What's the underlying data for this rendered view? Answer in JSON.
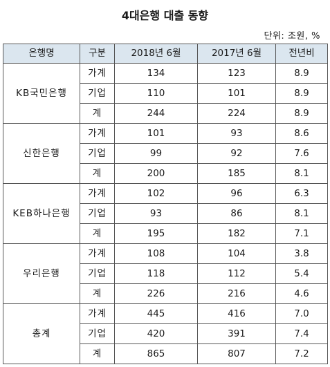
{
  "title": "4대은행 대출 동향",
  "unit": "단위: 조원, %",
  "table": {
    "headers": [
      "은행명",
      "구분",
      "2018년 6월",
      "2017년 6월",
      "전년비"
    ],
    "groups": [
      {
        "bank": "KB국민은행",
        "rows": [
          {
            "kind": "가계",
            "y2018": "134",
            "y2017": "123",
            "ratio": "8.9"
          },
          {
            "kind": "기업",
            "y2018": "110",
            "y2017": "101",
            "ratio": "8.9"
          },
          {
            "kind": "계",
            "y2018": "244",
            "y2017": "224",
            "ratio": "8.9"
          }
        ]
      },
      {
        "bank": "신한은행",
        "rows": [
          {
            "kind": "가계",
            "y2018": "101",
            "y2017": "93",
            "ratio": "8.6"
          },
          {
            "kind": "기업",
            "y2018": "99",
            "y2017": "92",
            "ratio": "7.6"
          },
          {
            "kind": "계",
            "y2018": "200",
            "y2017": "185",
            "ratio": "8.1"
          }
        ]
      },
      {
        "bank": "KEB하나은행",
        "rows": [
          {
            "kind": "가계",
            "y2018": "102",
            "y2017": "96",
            "ratio": "6.3"
          },
          {
            "kind": "기업",
            "y2018": "93",
            "y2017": "86",
            "ratio": "8.1"
          },
          {
            "kind": "계",
            "y2018": "195",
            "y2017": "182",
            "ratio": "7.1"
          }
        ]
      },
      {
        "bank": "우리은행",
        "rows": [
          {
            "kind": "가계",
            "y2018": "108",
            "y2017": "104",
            "ratio": "3.8"
          },
          {
            "kind": "기업",
            "y2018": "118",
            "y2017": "112",
            "ratio": "5.4"
          },
          {
            "kind": "계",
            "y2018": "226",
            "y2017": "216",
            "ratio": "4.6"
          }
        ]
      },
      {
        "bank": "총계",
        "rows": [
          {
            "kind": "가계",
            "y2018": "445",
            "y2017": "416",
            "ratio": "7.0"
          },
          {
            "kind": "기업",
            "y2018": "420",
            "y2017": "391",
            "ratio": "7.4"
          },
          {
            "kind": "계",
            "y2018": "865",
            "y2017": "807",
            "ratio": "7.2"
          }
        ]
      }
    ]
  },
  "colors": {
    "header_background": "#dbe6ef",
    "border": "#555555"
  }
}
